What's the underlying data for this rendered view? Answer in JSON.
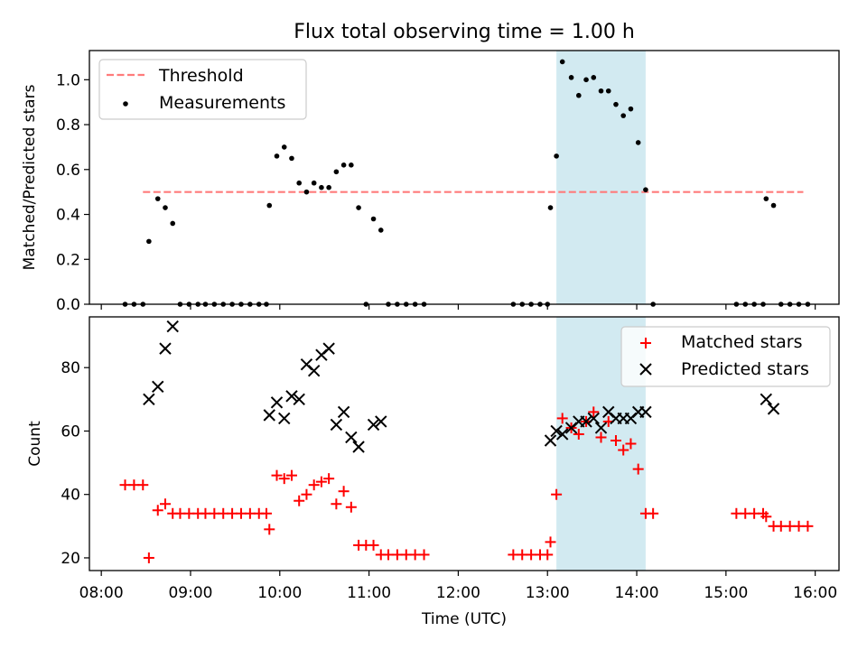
{
  "chart_data": [
    {
      "type": "scatter",
      "title": "Flux total observing time = 1.00 h",
      "xlabel": "",
      "ylabel": "Matched/Predicted stars",
      "xlim": [
        "07:52",
        "16:16"
      ],
      "ylim": [
        0,
        1.13
      ],
      "y_ticks": [
        "0.0",
        "0.2",
        "0.4",
        "0.6",
        "0.8",
        "1.0"
      ],
      "x_ticks_labeled": false,
      "legend_position": "upper-left",
      "threshold": {
        "name": "Threshold",
        "value": 0.5,
        "x_start": "08:28",
        "x_end": "15:52",
        "color": "#ff7b7b",
        "dash": true
      },
      "highlight": {
        "x_start": "13:06",
        "x_end": "14:06",
        "color": "#add8e6"
      },
      "series": [
        {
          "name": "Measurements",
          "marker": "dot",
          "color": "#000000",
          "points": [
            [
              "08:16",
              0
            ],
            [
              "08:22",
              0
            ],
            [
              "08:28",
              0
            ],
            [
              "08:32",
              0.28
            ],
            [
              "08:38",
              0.47
            ],
            [
              "08:43",
              0.43
            ],
            [
              "08:48",
              0.36
            ],
            [
              "08:53",
              0
            ],
            [
              "08:59",
              0
            ],
            [
              "09:05",
              0
            ],
            [
              "09:10",
              0
            ],
            [
              "09:16",
              0
            ],
            [
              "09:22",
              0
            ],
            [
              "09:28",
              0
            ],
            [
              "09:34",
              0
            ],
            [
              "09:40",
              0
            ],
            [
              "09:46",
              0
            ],
            [
              "09:51",
              0
            ],
            [
              "09:53",
              0.44
            ],
            [
              "09:58",
              0.66
            ],
            [
              "10:03",
              0.7
            ],
            [
              "10:08",
              0.65
            ],
            [
              "10:13",
              0.54
            ],
            [
              "10:18",
              0.5
            ],
            [
              "10:23",
              0.54
            ],
            [
              "10:28",
              0.52
            ],
            [
              "10:33",
              0.52
            ],
            [
              "10:38",
              0.59
            ],
            [
              "10:43",
              0.62
            ],
            [
              "10:48",
              0.62
            ],
            [
              "10:53",
              0.43
            ],
            [
              "10:58",
              0
            ],
            [
              "11:03",
              0.38
            ],
            [
              "11:08",
              0.33
            ],
            [
              "11:13",
              0
            ],
            [
              "11:19",
              0
            ],
            [
              "11:25",
              0
            ],
            [
              "11:31",
              0
            ],
            [
              "11:37",
              0
            ],
            [
              "12:37",
              0
            ],
            [
              "12:43",
              0
            ],
            [
              "12:49",
              0
            ],
            [
              "12:55",
              0
            ],
            [
              "13:00",
              0
            ],
            [
              "13:02",
              0.43
            ],
            [
              "13:06",
              0.66
            ],
            [
              "13:10",
              1.08
            ],
            [
              "13:16",
              1.01
            ],
            [
              "13:21",
              0.93
            ],
            [
              "13:26",
              1.0
            ],
            [
              "13:31",
              1.01
            ],
            [
              "13:36",
              0.95
            ],
            [
              "13:41",
              0.95
            ],
            [
              "13:46",
              0.89
            ],
            [
              "13:51",
              0.84
            ],
            [
              "13:56",
              0.87
            ],
            [
              "14:01",
              0.72
            ],
            [
              "14:06",
              0.51
            ],
            [
              "14:11",
              0
            ],
            [
              "15:07",
              0
            ],
            [
              "15:13",
              0
            ],
            [
              "15:19",
              0
            ],
            [
              "15:25",
              0
            ],
            [
              "15:27",
              0.47
            ],
            [
              "15:32",
              0.44
            ],
            [
              "15:37",
              0
            ],
            [
              "15:43",
              0
            ],
            [
              "15:49",
              0
            ],
            [
              "15:55",
              0
            ]
          ]
        }
      ]
    },
    {
      "type": "scatter",
      "title": "",
      "xlabel": "Time (UTC)",
      "ylabel": "Count",
      "xlim": [
        "07:52",
        "16:16"
      ],
      "ylim": [
        16,
        96
      ],
      "x_ticks": [
        "08:00",
        "09:00",
        "10:00",
        "11:00",
        "12:00",
        "13:00",
        "14:00",
        "15:00",
        "16:00"
      ],
      "y_ticks": [
        "20",
        "40",
        "60",
        "80"
      ],
      "legend_position": "upper-right",
      "highlight": {
        "x_start": "13:06",
        "x_end": "14:06",
        "color": "#add8e6"
      },
      "series": [
        {
          "name": "Matched stars",
          "marker": "plus",
          "color": "#ff0000",
          "points": [
            [
              "08:16",
              43
            ],
            [
              "08:22",
              43
            ],
            [
              "08:28",
              43
            ],
            [
              "08:32",
              20
            ],
            [
              "08:38",
              35
            ],
            [
              "08:43",
              37
            ],
            [
              "08:48",
              34
            ],
            [
              "08:53",
              34
            ],
            [
              "08:59",
              34
            ],
            [
              "09:05",
              34
            ],
            [
              "09:10",
              34
            ],
            [
              "09:16",
              34
            ],
            [
              "09:22",
              34
            ],
            [
              "09:28",
              34
            ],
            [
              "09:34",
              34
            ],
            [
              "09:40",
              34
            ],
            [
              "09:46",
              34
            ],
            [
              "09:51",
              34
            ],
            [
              "09:53",
              29
            ],
            [
              "09:58",
              46
            ],
            [
              "10:03",
              45
            ],
            [
              "10:08",
              46
            ],
            [
              "10:13",
              38
            ],
            [
              "10:18",
              40
            ],
            [
              "10:23",
              43
            ],
            [
              "10:28",
              44
            ],
            [
              "10:33",
              45
            ],
            [
              "10:38",
              37
            ],
            [
              "10:43",
              41
            ],
            [
              "10:48",
              36
            ],
            [
              "10:53",
              24
            ],
            [
              "10:58",
              24
            ],
            [
              "11:03",
              24
            ],
            [
              "11:08",
              21
            ],
            [
              "11:13",
              21
            ],
            [
              "11:19",
              21
            ],
            [
              "11:25",
              21
            ],
            [
              "11:31",
              21
            ],
            [
              "11:37",
              21
            ],
            [
              "12:37",
              21
            ],
            [
              "12:43",
              21
            ],
            [
              "12:49",
              21
            ],
            [
              "12:55",
              21
            ],
            [
              "13:00",
              21
            ],
            [
              "13:02",
              25
            ],
            [
              "13:06",
              40
            ],
            [
              "13:10",
              64
            ],
            [
              "13:16",
              61
            ],
            [
              "13:21",
              59
            ],
            [
              "13:26",
              63
            ],
            [
              "13:31",
              66
            ],
            [
              "13:36",
              58
            ],
            [
              "13:41",
              63
            ],
            [
              "13:46",
              57
            ],
            [
              "13:51",
              54
            ],
            [
              "13:56",
              56
            ],
            [
              "14:01",
              48
            ],
            [
              "14:06",
              34
            ],
            [
              "14:11",
              34
            ],
            [
              "15:07",
              34
            ],
            [
              "15:13",
              34
            ],
            [
              "15:19",
              34
            ],
            [
              "15:25",
              34
            ],
            [
              "15:27",
              33
            ],
            [
              "15:32",
              30
            ],
            [
              "15:37",
              30
            ],
            [
              "15:43",
              30
            ],
            [
              "15:49",
              30
            ],
            [
              "15:55",
              30
            ]
          ]
        },
        {
          "name": "Predicted stars",
          "marker": "cross",
          "color": "#000000",
          "points": [
            [
              "08:32",
              70
            ],
            [
              "08:38",
              74
            ],
            [
              "08:43",
              86
            ],
            [
              "08:48",
              93
            ],
            [
              "09:53",
              65
            ],
            [
              "09:58",
              69
            ],
            [
              "10:03",
              64
            ],
            [
              "10:08",
              71
            ],
            [
              "10:13",
              70
            ],
            [
              "10:18",
              81
            ],
            [
              "10:23",
              79
            ],
            [
              "10:28",
              84
            ],
            [
              "10:33",
              86
            ],
            [
              "10:38",
              62
            ],
            [
              "10:43",
              66
            ],
            [
              "10:48",
              58
            ],
            [
              "10:53",
              55
            ],
            [
              "11:03",
              62
            ],
            [
              "11:08",
              63
            ],
            [
              "13:02",
              57
            ],
            [
              "13:06",
              60
            ],
            [
              "13:10",
              59
            ],
            [
              "13:16",
              61
            ],
            [
              "13:21",
              63
            ],
            [
              "13:26",
              63
            ],
            [
              "13:31",
              64
            ],
            [
              "13:36",
              61
            ],
            [
              "13:41",
              66
            ],
            [
              "13:46",
              64
            ],
            [
              "13:51",
              64
            ],
            [
              "13:56",
              64
            ],
            [
              "14:01",
              66
            ],
            [
              "14:06",
              66
            ],
            [
              "15:27",
              70
            ],
            [
              "15:32",
              67
            ]
          ]
        }
      ]
    }
  ]
}
